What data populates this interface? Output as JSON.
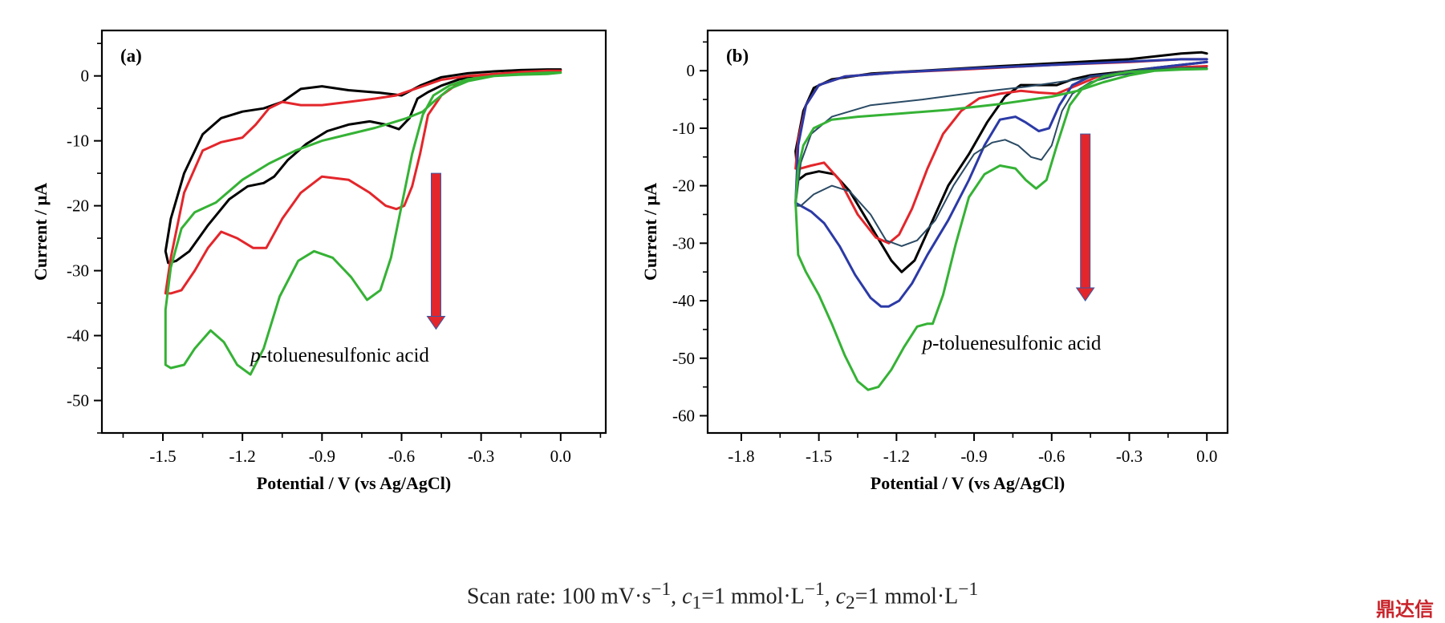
{
  "caption": {
    "prefix": "Scan rate: 100 mV·s",
    "exp1": "−1",
    "mid1": ", ",
    "c1_var": "c",
    "c1_sub": "1",
    "mid2": "=1 mmol·L",
    "exp2": "−1",
    "mid3": ", ",
    "c2_var": "c",
    "c2_sub": "2",
    "mid4": "=1 mmol·L",
    "exp3": "−1"
  },
  "watermark": "鼎达信",
  "chart_data": [
    {
      "type": "line",
      "panel_label": "(a)",
      "xlabel": "Potential / V (vs Ag/AgCl)",
      "ylabel": "Current / μA",
      "xlim": [
        -1.73,
        0.17
      ],
      "ylim": [
        -55,
        7
      ],
      "xticks": [
        -1.5,
        -1.2,
        -0.9,
        -0.6,
        -0.3,
        0.0
      ],
      "xtick_labels": [
        "-1.5",
        "-1.2",
        "-0.9",
        "-0.6",
        "-0.3",
        "0.0"
      ],
      "yticks": [
        0,
        -10,
        -20,
        -30,
        -40,
        -50
      ],
      "ytick_labels": [
        "0",
        "-10",
        "-20",
        "-30",
        "-40",
        "-50"
      ],
      "annotation": {
        "italic": "p",
        "text": "-toluenesulfonic acid",
        "x": -1.17,
        "y": -44
      },
      "arrow": {
        "x": -0.47,
        "y_from": -15,
        "y_to": -39,
        "color": "#e3262b"
      },
      "series": [
        {
          "color": "#000000",
          "x": [
            0.0,
            -0.05,
            -0.15,
            -0.25,
            -0.35,
            -0.45,
            -0.53,
            -0.6,
            -0.68,
            -0.8,
            -0.9,
            -0.98,
            -1.05,
            -1.12,
            -1.2,
            -1.28,
            -1.35,
            -1.42,
            -1.47,
            -1.49,
            -1.48,
            -1.45,
            -1.4,
            -1.33,
            -1.25,
            -1.18,
            -1.12,
            -1.08,
            -1.03,
            -0.96,
            -0.88,
            -0.8,
            -0.72,
            -0.66,
            -0.61,
            -0.57,
            -0.54,
            -0.5,
            -0.45,
            -0.38,
            -0.3,
            -0.2,
            -0.1,
            0.0
          ],
          "y": [
            1.0,
            1.0,
            0.9,
            0.7,
            0.4,
            -0.2,
            -1.5,
            -3.0,
            -2.6,
            -2.2,
            -1.6,
            -2.0,
            -4.0,
            -5.0,
            -5.5,
            -6.5,
            -9.0,
            -15.0,
            -22.0,
            -27.0,
            -28.8,
            -28.5,
            -27.0,
            -23.0,
            -19.0,
            -17.0,
            -16.5,
            -15.5,
            -13.0,
            -10.5,
            -8.5,
            -7.5,
            -7.0,
            -7.5,
            -8.2,
            -6.5,
            -3.5,
            -2.5,
            -1.5,
            -0.5,
            0.0,
            0.3,
            0.6,
            1.0
          ]
        },
        {
          "color": "#e3262b",
          "x": [
            0.0,
            -0.05,
            -0.15,
            -0.25,
            -0.35,
            -0.45,
            -0.55,
            -0.62,
            -0.7,
            -0.8,
            -0.9,
            -0.98,
            -1.05,
            -1.1,
            -1.15,
            -1.2,
            -1.28,
            -1.35,
            -1.42,
            -1.47,
            -1.49,
            -1.47,
            -1.43,
            -1.38,
            -1.33,
            -1.28,
            -1.22,
            -1.16,
            -1.11,
            -1.05,
            -0.98,
            -0.9,
            -0.8,
            -0.72,
            -0.66,
            -0.62,
            -0.59,
            -0.56,
            -0.53,
            -0.5,
            -0.45,
            -0.38,
            -0.3,
            -0.2,
            -0.1,
            0.0
          ],
          "y": [
            0.8,
            0.8,
            0.6,
            0.3,
            0.0,
            -0.6,
            -2.0,
            -3.0,
            -3.5,
            -4.0,
            -4.5,
            -4.5,
            -4.0,
            -5.0,
            -7.5,
            -9.5,
            -10.2,
            -11.5,
            -18.0,
            -28.0,
            -33.5,
            -33.5,
            -33.0,
            -30.0,
            -26.5,
            -24.0,
            -25.0,
            -26.5,
            -26.5,
            -22.0,
            -18.0,
            -15.5,
            -16.0,
            -18.0,
            -20.0,
            -20.5,
            -20.0,
            -17.0,
            -12.0,
            -6.0,
            -3.0,
            -1.0,
            0.0,
            0.3,
            0.5,
            0.8
          ]
        },
        {
          "color": "#35b235",
          "x": [
            0.0,
            -0.05,
            -0.15,
            -0.25,
            -0.35,
            -0.42,
            -0.48,
            -0.52,
            -0.55,
            -0.58,
            -0.62,
            -0.7,
            -0.8,
            -0.9,
            -1.0,
            -1.1,
            -1.2,
            -1.3,
            -1.38,
            -1.43,
            -1.47,
            -1.49,
            -1.49,
            -1.47,
            -1.42,
            -1.38,
            -1.32,
            -1.27,
            -1.22,
            -1.17,
            -1.12,
            -1.06,
            -0.99,
            -0.93,
            -0.86,
            -0.79,
            -0.73,
            -0.68,
            -0.64,
            -0.6,
            -0.56,
            -0.52,
            -0.48,
            -0.42,
            -0.35,
            -0.25,
            -0.15,
            -0.05,
            0.0
          ],
          "y": [
            0.5,
            0.5,
            0.3,
            0.0,
            -0.8,
            -2.0,
            -4.0,
            -5.5,
            -6.0,
            -6.5,
            -7.0,
            -8.0,
            -9.0,
            -10.0,
            -11.5,
            -13.5,
            -16.0,
            -19.5,
            -21.0,
            -23.5,
            -29.5,
            -36.0,
            -44.5,
            -45.0,
            -44.5,
            -42.0,
            -39.2,
            -41.0,
            -44.5,
            -46.0,
            -42.0,
            -34.0,
            -28.5,
            -27.0,
            -28.0,
            -31.0,
            -34.5,
            -33.0,
            -28.0,
            -20.0,
            -12.0,
            -6.0,
            -3.0,
            -1.5,
            -0.5,
            0.0,
            0.2,
            0.3,
            0.5
          ]
        }
      ]
    },
    {
      "type": "line",
      "panel_label": "(b)",
      "xlabel": "Potential / V (vs Ag/AgCl)",
      "ylabel": "Current / μA",
      "xlim": [
        -1.93,
        0.08
      ],
      "ylim": [
        -63,
        7
      ],
      "xticks": [
        -1.8,
        -1.5,
        -1.2,
        -0.9,
        -0.6,
        -0.3,
        0.0
      ],
      "xtick_labels": [
        "-1.8",
        "-1.5",
        "-1.2",
        "-0.9",
        "-0.6",
        "-0.3",
        "0.0"
      ],
      "yticks": [
        0,
        -10,
        -20,
        -30,
        -40,
        -50,
        -60
      ],
      "ytick_labels": [
        "0",
        "-10",
        "-20",
        "-30",
        "-40",
        "-50",
        "-60"
      ],
      "annotation": {
        "italic": "p",
        "text": "-toluenesulfonic acid",
        "x": -1.1,
        "y": -48.5
      },
      "arrow": {
        "x": -0.47,
        "y_from": -11,
        "y_to": -40,
        "color": "#e3262b"
      },
      "series": [
        {
          "color": "#000000",
          "x": [
            0.0,
            -0.02,
            -0.1,
            -0.3,
            -0.5,
            -0.8,
            -1.1,
            -1.3,
            -1.45,
            -1.52,
            -1.56,
            -1.59,
            -1.58,
            -1.55,
            -1.5,
            -1.44,
            -1.38,
            -1.3,
            -1.22,
            -1.18,
            -1.13,
            -1.07,
            -1.0,
            -0.92,
            -0.85,
            -0.78,
            -0.72,
            -0.65,
            -0.58,
            -0.52,
            -0.45,
            -0.35,
            -0.2,
            -0.1,
            0.0
          ],
          "y": [
            3.0,
            3.2,
            3.0,
            2.0,
            1.5,
            0.8,
            0.0,
            -0.5,
            -1.5,
            -3.0,
            -7.0,
            -14.0,
            -19.0,
            -18.0,
            -17.5,
            -18.0,
            -21.0,
            -27.0,
            -33.0,
            -35.0,
            -33.0,
            -27.0,
            -20.0,
            -14.5,
            -9.0,
            -4.5,
            -2.5,
            -2.5,
            -2.5,
            -1.5,
            -0.8,
            -0.3,
            0.5,
            1.0,
            1.5
          ]
        },
        {
          "color": "#e3262b",
          "x": [
            0.0,
            -0.1,
            -0.3,
            -0.6,
            -0.9,
            -1.2,
            -1.4,
            -1.5,
            -1.55,
            -1.58,
            -1.59,
            -1.57,
            -1.53,
            -1.48,
            -1.42,
            -1.35,
            -1.28,
            -1.23,
            -1.19,
            -1.14,
            -1.08,
            -1.02,
            -0.95,
            -0.88,
            -0.8,
            -0.72,
            -0.65,
            -0.58,
            -0.5,
            -0.42,
            -0.32,
            -0.2,
            -0.1,
            0.0
          ],
          "y": [
            2.0,
            2.0,
            1.5,
            1.0,
            0.3,
            -0.3,
            -1.0,
            -2.5,
            -6.0,
            -12.0,
            -17.0,
            -17.0,
            -16.5,
            -16.0,
            -19.0,
            -25.0,
            -29.0,
            -30.0,
            -28.5,
            -24.0,
            -17.0,
            -11.0,
            -7.0,
            -4.8,
            -4.0,
            -3.5,
            -3.8,
            -4.0,
            -2.5,
            -1.0,
            -0.2,
            0.3,
            0.6,
            0.8
          ]
        },
        {
          "color": "#2b3aa6",
          "x": [
            0.0,
            -0.1,
            -0.3,
            -0.6,
            -0.9,
            -1.2,
            -1.4,
            -1.5,
            -1.55,
            -1.58,
            -1.59,
            -1.57,
            -1.53,
            -1.48,
            -1.42,
            -1.36,
            -1.3,
            -1.26,
            -1.23,
            -1.19,
            -1.14,
            -1.08,
            -1.0,
            -0.92,
            -0.86,
            -0.8,
            -0.74,
            -0.7,
            -0.65,
            -0.61,
            -0.57,
            -0.52,
            -0.45,
            -0.35,
            -0.2,
            -0.1,
            0.0
          ],
          "y": [
            2.0,
            2.0,
            1.6,
            1.0,
            0.4,
            -0.3,
            -1.0,
            -2.5,
            -6.0,
            -13.0,
            -23.0,
            -23.5,
            -24.5,
            -26.5,
            -30.5,
            -35.5,
            -39.5,
            -41.0,
            -41.0,
            -40.0,
            -37.0,
            -32.0,
            -26.0,
            -19.0,
            -13.0,
            -8.5,
            -8.0,
            -9.0,
            -10.5,
            -10.0,
            -6.0,
            -2.5,
            -1.0,
            -0.5,
            0.5,
            1.0,
            1.5
          ]
        },
        {
          "color": "#2a4a64",
          "x": [
            0.0,
            -0.1,
            -0.3,
            -0.5,
            -0.7,
            -0.9,
            -1.1,
            -1.3,
            -1.45,
            -1.53,
            -1.57,
            -1.59,
            -1.57,
            -1.52,
            -1.45,
            -1.38,
            -1.3,
            -1.24,
            -1.18,
            -1.12,
            -1.05,
            -0.98,
            -0.9,
            -0.83,
            -0.78,
            -0.73,
            -0.68,
            -0.64,
            -0.6,
            -0.56,
            -0.52,
            -0.45,
            -0.35,
            -0.2,
            -0.1,
            0.0
          ],
          "y": [
            0.5,
            0.5,
            0.0,
            -1.5,
            -2.8,
            -3.8,
            -5.0,
            -6.0,
            -8.0,
            -11.0,
            -16.0,
            -23.5,
            -23.5,
            -21.5,
            -20.0,
            -21.0,
            -25.0,
            -29.5,
            -30.5,
            -29.5,
            -26.0,
            -20.0,
            -14.5,
            -12.5,
            -12.0,
            -13.0,
            -15.0,
            -15.5,
            -13.0,
            -7.0,
            -4.0,
            -2.0,
            -0.8,
            0.0,
            0.3,
            0.5
          ]
        },
        {
          "color": "#35b235",
          "x": [
            0.0,
            -0.1,
            -0.2,
            -0.3,
            -0.4,
            -0.5,
            -0.6,
            -0.8,
            -1.0,
            -1.2,
            -1.35,
            -1.45,
            -1.52,
            -1.56,
            -1.58,
            -1.59,
            -1.58,
            -1.55,
            -1.5,
            -1.45,
            -1.4,
            -1.35,
            -1.31,
            -1.27,
            -1.22,
            -1.17,
            -1.12,
            -1.08,
            -1.06,
            -1.02,
            -0.97,
            -0.92,
            -0.86,
            -0.8,
            -0.74,
            -0.7,
            -0.66,
            -0.62,
            -0.58,
            -0.53,
            -0.48,
            -0.4,
            -0.3,
            -0.2,
            -0.1,
            0.0
          ],
          "y": [
            0.3,
            0.3,
            0.0,
            -0.8,
            -2.0,
            -3.5,
            -4.5,
            -5.8,
            -6.8,
            -7.5,
            -8.0,
            -8.5,
            -10.0,
            -13.0,
            -17.0,
            -23.0,
            -32.0,
            -35.0,
            -39.0,
            -44.0,
            -49.5,
            -54.0,
            -55.5,
            -55.0,
            -52.0,
            -48.0,
            -44.5,
            -44.0,
            -44.0,
            -39.0,
            -30.0,
            -22.0,
            -18.0,
            -16.5,
            -17.0,
            -19.0,
            -20.5,
            -19.0,
            -13.0,
            -6.0,
            -3.0,
            -1.0,
            -0.2,
            0.0,
            0.2,
            0.3
          ]
        }
      ]
    }
  ]
}
